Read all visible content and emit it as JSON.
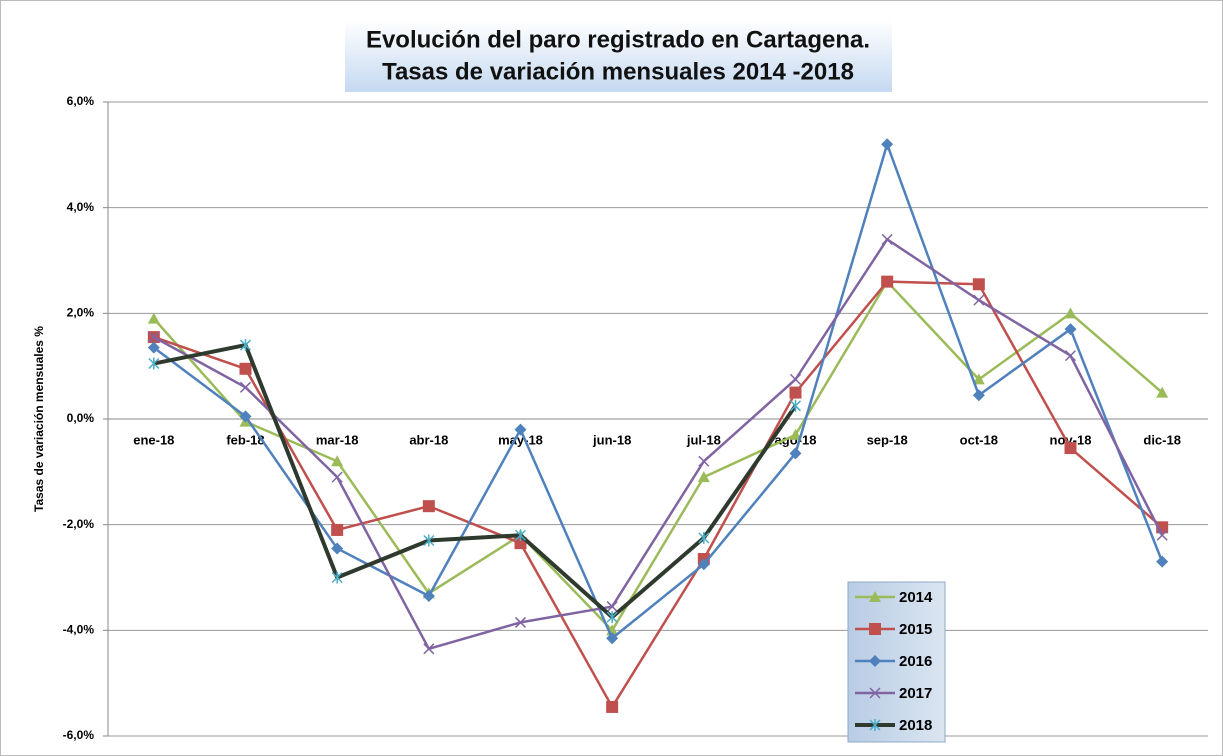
{
  "chart_data": {
    "type": "line",
    "title": "Evolución del paro registrado en Cartagena.",
    "subtitle": "Tasas de variación mensuales 2014 -2018",
    "y_label": "Tasas de variación mensuales %",
    "categories": [
      "ene-18",
      "feb-18",
      "mar-18",
      "abr-18",
      "may-18",
      "jun-18",
      "jul-18",
      "ago-18",
      "sep-18",
      "oct-18",
      "nov-18",
      "dic-18"
    ],
    "series": [
      {
        "name": "2014",
        "color": "#9bbb59",
        "marker": "triangle",
        "values": [
          1.9,
          -0.05,
          -0.8,
          -3.3,
          -2.2,
          -4.0,
          -1.1,
          -0.3,
          2.6,
          0.75,
          2.0,
          0.5
        ]
      },
      {
        "name": "2015",
        "color": "#c0504d",
        "marker": "square",
        "values": [
          1.55,
          0.95,
          -2.1,
          -1.65,
          -2.35,
          -5.45,
          -2.65,
          0.5,
          2.6,
          2.55,
          -0.55,
          -2.05
        ]
      },
      {
        "name": "2016",
        "color": "#4f81bd",
        "marker": "diamond",
        "values": [
          1.35,
          0.05,
          -2.45,
          -3.35,
          -0.2,
          -4.15,
          -2.75,
          -0.65,
          5.2,
          0.45,
          1.7,
          -2.7
        ]
      },
      {
        "name": "2017",
        "color": "#8064a2",
        "marker": "x",
        "values": [
          1.55,
          0.6,
          -1.1,
          -4.35,
          -3.85,
          -3.55,
          -0.8,
          0.75,
          3.4,
          2.25,
          1.2,
          -2.2
        ]
      },
      {
        "name": "2018",
        "color": "#2f3a2f",
        "marker": "star",
        "width": 4,
        "values": [
          1.05,
          1.4,
          -3.0,
          -2.3,
          -2.2,
          -3.75,
          -2.25,
          0.25,
          null,
          null,
          null,
          null
        ]
      }
    ],
    "ylim": [
      -6,
      6
    ],
    "yticks": [
      {
        "value": -6,
        "label": "-6,0%"
      },
      {
        "value": -4,
        "label": "-4,0%"
      },
      {
        "value": -2,
        "label": "-2,0%"
      },
      {
        "value": 0,
        "label": "0,0%"
      },
      {
        "value": 2,
        "label": "2,0%"
      },
      {
        "value": 4,
        "label": "4,0%"
      },
      {
        "value": 6,
        "label": "6,0%"
      }
    ],
    "grid": true
  }
}
